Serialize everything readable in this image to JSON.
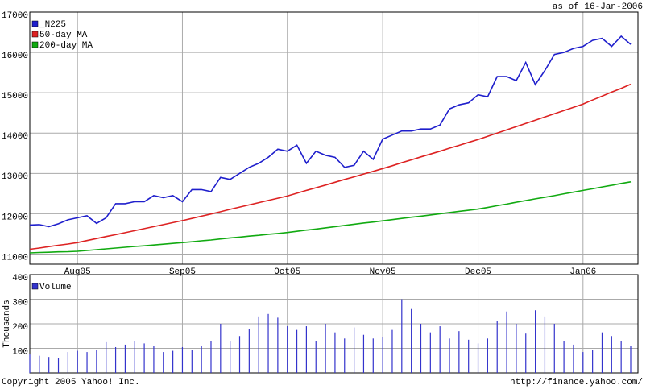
{
  "header": {
    "as_of": "as of 16-Jan-2006"
  },
  "footer": {
    "copyright": "Copyright 2005 Yahoo! Inc.",
    "url": "http://finance.yahoo.com/"
  },
  "chart_data": [
    {
      "type": "line",
      "categories": [
        null,
        null,
        null,
        null,
        null,
        "Aug05",
        null,
        null,
        null,
        null,
        null,
        null,
        null,
        null,
        null,
        null,
        "Sep05",
        null,
        null,
        null,
        null,
        null,
        null,
        null,
        null,
        null,
        null,
        "Oct05",
        null,
        null,
        null,
        null,
        null,
        null,
        null,
        null,
        null,
        "Nov05",
        null,
        null,
        null,
        null,
        null,
        null,
        null,
        null,
        null,
        "Dec05",
        null,
        null,
        null,
        null,
        null,
        null,
        null,
        null,
        null,
        null,
        "Jan06",
        null,
        null,
        null,
        null,
        null
      ],
      "series": [
        {
          "name": "_N225",
          "color": "#1f1fcc",
          "values": [
            11720,
            11730,
            11680,
            11750,
            11850,
            11900,
            11950,
            11760,
            11900,
            12250,
            12250,
            12300,
            12300,
            12450,
            12400,
            12450,
            12300,
            12600,
            12600,
            12550,
            12900,
            12850,
            13000,
            13150,
            13250,
            13400,
            13600,
            13550,
            13700,
            13250,
            13550,
            13450,
            13400,
            13150,
            13200,
            13550,
            13350,
            13850,
            13950,
            14050,
            14050,
            14100,
            14100,
            14200,
            14600,
            14700,
            14750,
            14950,
            14900,
            15400,
            15400,
            15300,
            15750,
            15200,
            15550,
            15950,
            16000,
            16100,
            16150,
            16300,
            16350,
            16150,
            16400,
            16200
          ]
        },
        {
          "name": "50-day MA",
          "color": "#dd2222",
          "values": [
            11120,
            11150,
            11185,
            11220,
            11250,
            11285,
            11335,
            11385,
            11435,
            11480,
            11530,
            11580,
            11630,
            11680,
            11730,
            11780,
            11830,
            11885,
            11940,
            11995,
            12050,
            12110,
            12165,
            12220,
            12275,
            12330,
            12385,
            12440,
            12510,
            12580,
            12645,
            12710,
            12780,
            12850,
            12915,
            12985,
            13050,
            13120,
            13190,
            13265,
            13335,
            13410,
            13480,
            13550,
            13625,
            13695,
            13770,
            13840,
            13920,
            14000,
            14080,
            14160,
            14240,
            14320,
            14400,
            14480,
            14560,
            14640,
            14720,
            14820,
            14915,
            15015,
            15110,
            15210
          ]
        },
        {
          "name": "200-day MA",
          "color": "#11aa11",
          "values": [
            11030,
            11040,
            11045,
            11055,
            11060,
            11070,
            11090,
            11110,
            11130,
            11150,
            11170,
            11190,
            11205,
            11225,
            11245,
            11265,
            11285,
            11305,
            11330,
            11350,
            11375,
            11400,
            11420,
            11445,
            11465,
            11490,
            11510,
            11535,
            11565,
            11595,
            11620,
            11650,
            11680,
            11710,
            11740,
            11770,
            11795,
            11825,
            11855,
            11885,
            11915,
            11940,
            11970,
            12000,
            12030,
            12060,
            12085,
            12115,
            12155,
            12200,
            12240,
            12285,
            12325,
            12370,
            12410,
            12450,
            12495,
            12535,
            12580,
            12620,
            12665,
            12705,
            12750,
            12790
          ]
        }
      ],
      "ylim": [
        10750,
        17000
      ],
      "yticks": [
        11000,
        12000,
        13000,
        14000,
        15000,
        16000,
        17000
      ],
      "grid": true,
      "legend": "top-left"
    },
    {
      "type": "bar",
      "ylabel": "Thousands",
      "series": [
        {
          "name": "Volume",
          "color": "#3333cc",
          "values": [
            75,
            70,
            65,
            60,
            85,
            90,
            85,
            95,
            125,
            105,
            115,
            130,
            120,
            110,
            85,
            90,
            105,
            95,
            110,
            130,
            200,
            130,
            150,
            180,
            230,
            240,
            225,
            190,
            175,
            190,
            130,
            200,
            165,
            140,
            185,
            155,
            140,
            145,
            175,
            300,
            260,
            200,
            165,
            190,
            140,
            170,
            135,
            120,
            140,
            210,
            250,
            200,
            160,
            255,
            230,
            200,
            130,
            115,
            85,
            95,
            165,
            150,
            130,
            110
          ]
        }
      ],
      "ylim": [
        0,
        400
      ],
      "yticks": [
        100,
        200,
        300,
        400
      ],
      "grid": true,
      "legend": "top-left"
    }
  ]
}
